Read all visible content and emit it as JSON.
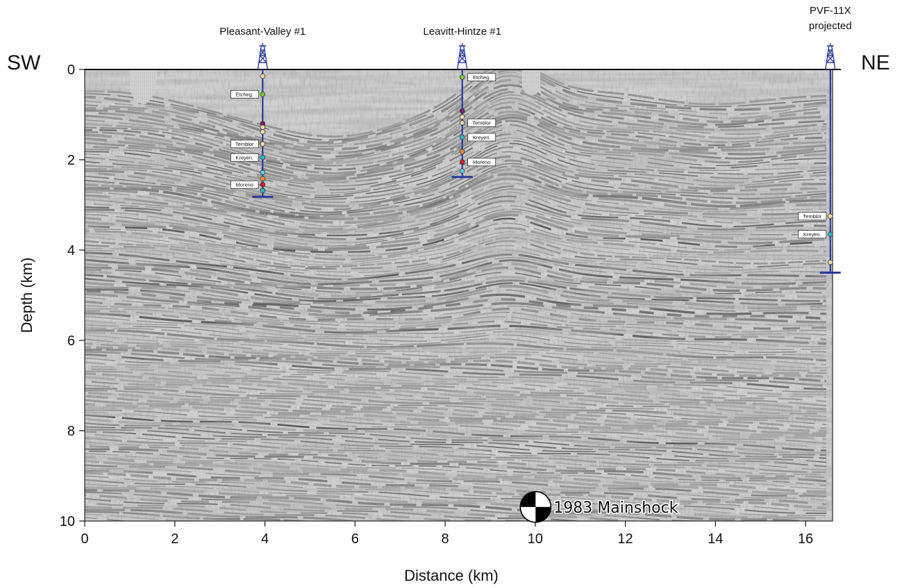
{
  "title": "",
  "directions": {
    "left": "SW",
    "right": "NE"
  },
  "axes": {
    "x": {
      "label": "Distance (km)",
      "min": 0,
      "max": 16.6,
      "ticks": [
        0,
        2,
        4,
        6,
        8,
        10,
        12,
        14,
        16
      ]
    },
    "y": {
      "label": "Depth (km)",
      "min": 0,
      "max": 10,
      "ticks": [
        0,
        2,
        4,
        6,
        8,
        10
      ]
    }
  },
  "colors": {
    "well": "#2b3a9a",
    "etcheg": "#7ac943",
    "temblor": "#f2d7b0",
    "kreyen": "#29b8c8",
    "moreno": "#d21f3c",
    "purple": "#7b1f6e",
    "orange": "#f08a3c",
    "cyan": "#5ad1e6"
  },
  "wells": [
    {
      "name": "Pleasant-Valley #1",
      "x": 3.95,
      "td": 2.82,
      "markers": [
        {
          "depth": 0.15,
          "color": "#f2d7b0"
        },
        {
          "depth": 0.55,
          "color": "#7ac943"
        },
        {
          "depth": 1.2,
          "color": "#7b1f6e"
        },
        {
          "depth": 1.28,
          "color": "#f2d7b0"
        },
        {
          "depth": 1.38,
          "color": "#f2d7b0"
        },
        {
          "depth": 1.65,
          "color": "#f2d7b0"
        },
        {
          "depth": 1.95,
          "color": "#29b8c8"
        },
        {
          "depth": 2.28,
          "color": "#5ad1e6"
        },
        {
          "depth": 2.42,
          "color": "#f08a3c"
        },
        {
          "depth": 2.55,
          "color": "#d21f3c"
        },
        {
          "depth": 2.68,
          "color": "#29b8c8"
        }
      ],
      "labels": [
        {
          "text": "Etcheg.",
          "depth": 0.55
        },
        {
          "text": "Temblor",
          "depth": 1.65
        },
        {
          "text": "Kreyen.",
          "depth": 1.95
        },
        {
          "text": "Moreno",
          "depth": 2.55
        }
      ]
    },
    {
      "name": "Leavitt-Hintze #1",
      "x": 8.38,
      "td": 2.38,
      "markers": [
        {
          "depth": 0.17,
          "color": "#7ac943"
        },
        {
          "depth": 0.92,
          "color": "#7b1f6e"
        },
        {
          "depth": 1.05,
          "color": "#f2d7b0"
        },
        {
          "depth": 1.18,
          "color": "#f2d7b0"
        },
        {
          "depth": 1.5,
          "color": "#29b8c8"
        },
        {
          "depth": 1.82,
          "color": "#f08a3c"
        },
        {
          "depth": 2.05,
          "color": "#d21f3c"
        },
        {
          "depth": 2.25,
          "color": "#5ad1e6"
        }
      ],
      "labels": [
        {
          "text": "Etcheg.",
          "depth": 0.17
        },
        {
          "text": "Temblor",
          "depth": 1.18
        },
        {
          "text": "Kreyen.",
          "depth": 1.5
        },
        {
          "text": "Moreno",
          "depth": 2.05
        }
      ]
    },
    {
      "name": "PVF-11X",
      "name2": "projected",
      "x": 16.55,
      "td": 4.5,
      "markers": [
        {
          "depth": 3.25,
          "color": "#f2d7b0"
        },
        {
          "depth": 3.65,
          "color": "#29b8c8"
        },
        {
          "depth": 4.27,
          "color": "#f2d7b0"
        }
      ],
      "labels": [
        {
          "text": "Temblor",
          "depth": 3.25
        },
        {
          "text": "Kreyen.",
          "depth": 3.65
        }
      ]
    }
  ],
  "earthquake": {
    "label": "1983 Mainshock",
    "x": 10.1,
    "depth": 9.75
  }
}
